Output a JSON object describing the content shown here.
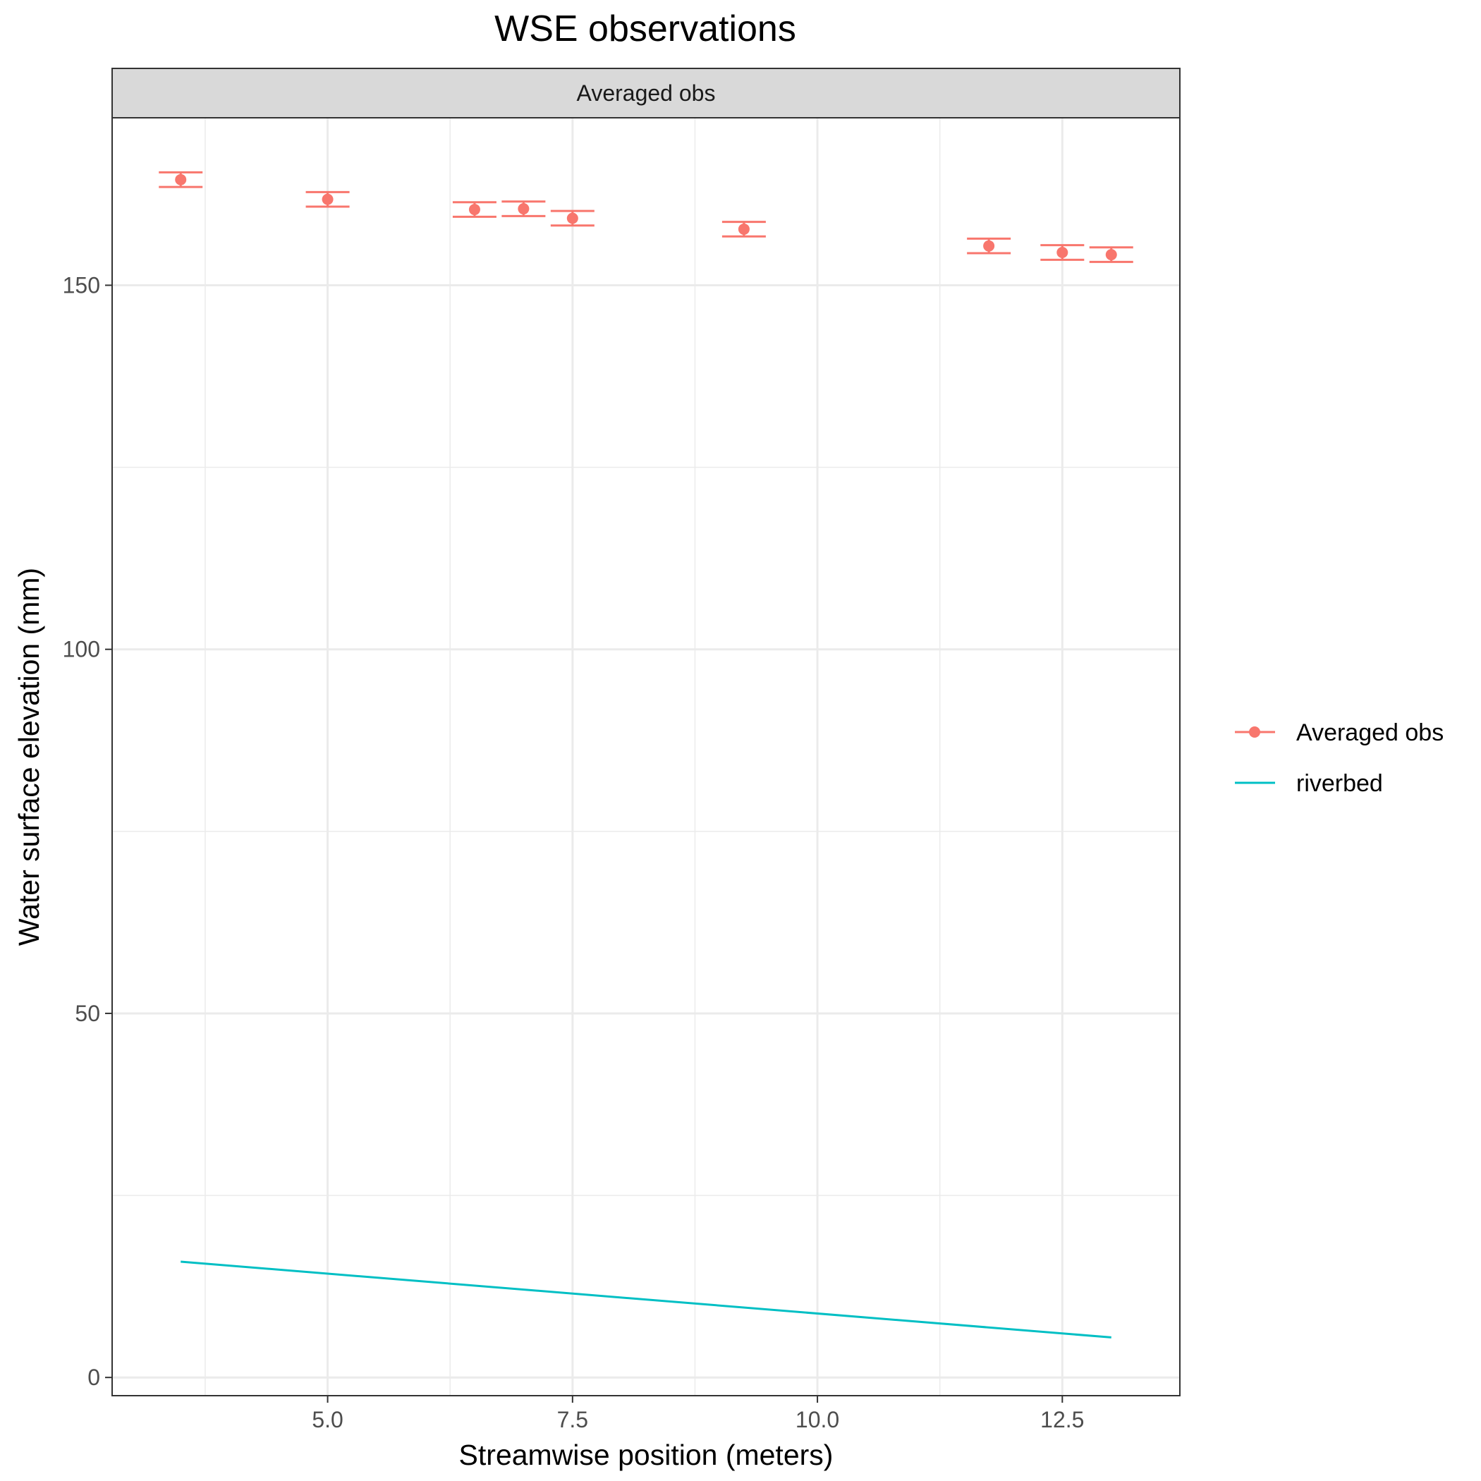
{
  "chart_data": {
    "type": "line",
    "title": "WSE observations",
    "facet_label": "Averaged obs",
    "xlabel": "Streamwise position (meters)",
    "ylabel": "Water surface elevation (mm)",
    "xlim": [
      2.8,
      13.7
    ],
    "ylim": [
      -2.5,
      173
    ],
    "x_ticks": [
      5.0,
      7.5,
      10.0,
      12.5
    ],
    "x_tick_labels": [
      "5.0",
      "7.5",
      "10.0",
      "12.5"
    ],
    "y_ticks": [
      0,
      50,
      100,
      150
    ],
    "y_tick_labels": [
      "0",
      "50",
      "100",
      "150"
    ],
    "grid": true,
    "legend_position": "right",
    "series": [
      {
        "name": "Averaged obs",
        "kind": "points_with_errorbars",
        "color": "#F8766D",
        "points": [
          {
            "x": 3.5,
            "y": 164.5,
            "ymin": 163.5,
            "ymax": 165.5
          },
          {
            "x": 5.0,
            "y": 161.8,
            "ymin": 160.8,
            "ymax": 162.8
          },
          {
            "x": 6.5,
            "y": 160.4,
            "ymin": 159.4,
            "ymax": 161.4
          },
          {
            "x": 7.0,
            "y": 160.5,
            "ymin": 159.5,
            "ymax": 161.5
          },
          {
            "x": 7.5,
            "y": 159.2,
            "ymin": 158.2,
            "ymax": 160.2
          },
          {
            "x": 9.25,
            "y": 157.7,
            "ymin": 156.7,
            "ymax": 158.7
          },
          {
            "x": 11.75,
            "y": 155.4,
            "ymin": 154.4,
            "ymax": 156.4
          },
          {
            "x": 12.5,
            "y": 154.5,
            "ymin": 153.5,
            "ymax": 155.5
          },
          {
            "x": 13.0,
            "y": 154.2,
            "ymin": 153.2,
            "ymax": 155.2
          }
        ]
      },
      {
        "name": "riverbed",
        "kind": "line",
        "color": "#00BFC4",
        "x": [
          3.5,
          13.0
        ],
        "y": [
          15.9,
          5.5
        ]
      }
    ]
  }
}
